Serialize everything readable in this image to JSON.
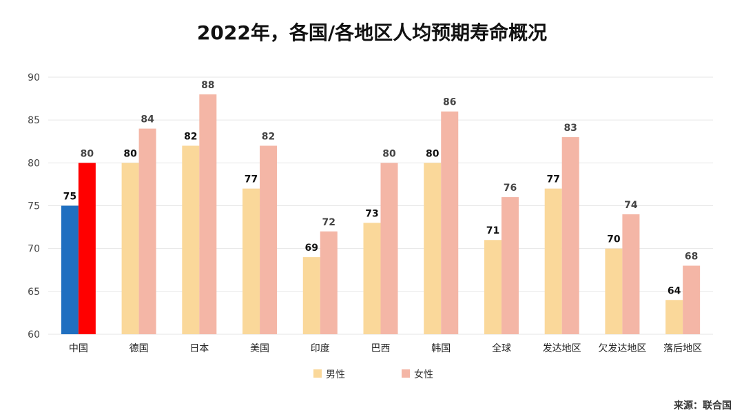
{
  "chart_data": {
    "type": "bar",
    "title": "2022年，各国/各地区人均预期寿命概况",
    "categories": [
      "中国",
      "德国",
      "日本",
      "美国",
      "印度",
      "巴西",
      "韩国",
      "全球",
      "发达地区",
      "欠发达地区",
      "落后地区"
    ],
    "series": [
      {
        "name": "男性",
        "values": [
          75,
          80,
          82,
          77,
          69,
          73,
          80,
          71,
          77,
          70,
          64
        ],
        "color": "#FAD89A"
      },
      {
        "name": "女性",
        "values": [
          80,
          84,
          88,
          82,
          72,
          80,
          86,
          76,
          83,
          74,
          68
        ],
        "color": "#F4B6A6"
      }
    ],
    "highlight": {
      "category": "中国",
      "male_color": "#1F6FC0",
      "female_color": "#FF0000"
    },
    "ylim": [
      60,
      90
    ],
    "yticks": [
      60,
      65,
      70,
      75,
      80,
      85,
      90
    ],
    "grid": true,
    "legend_position": "bottom",
    "xlabel": "",
    "ylabel": ""
  },
  "source": "来源：联合国",
  "colors": {
    "grid": "#E6E6E6",
    "axis_text": "#444444",
    "label_text": "#111111",
    "muted_label_text": "#444444"
  }
}
